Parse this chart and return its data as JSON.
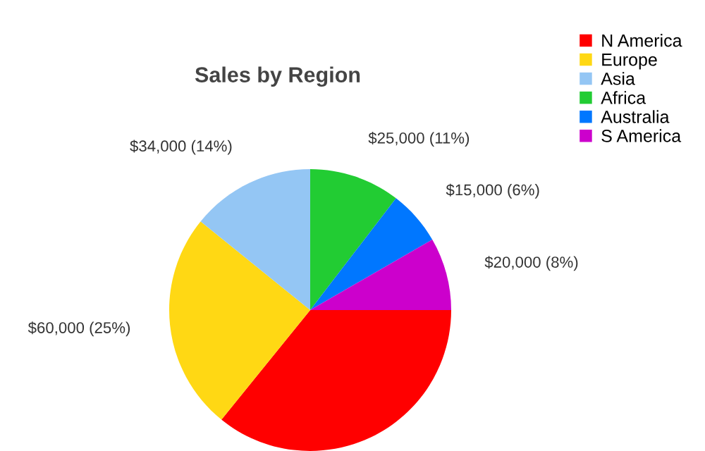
{
  "chart_data": {
    "type": "pie",
    "title": "Sales by Region",
    "categories": [
      "N America",
      "Europe",
      "Asia",
      "Africa",
      "Australia",
      "S America"
    ],
    "values": [
      86000,
      60000,
      34000,
      25000,
      15000,
      20000
    ],
    "value_labels": [
      null,
      "$60,000 (25%)",
      "$34,000 (14%)",
      "$25,000 (11%)",
      "$15,000 (6%)",
      "$20,000 (8%)"
    ],
    "colors": [
      "#ff0000",
      "#ffd814",
      "#94c6f4",
      "#22cc33",
      "#0077ff",
      "#cc00cc"
    ],
    "legend": "top right"
  }
}
